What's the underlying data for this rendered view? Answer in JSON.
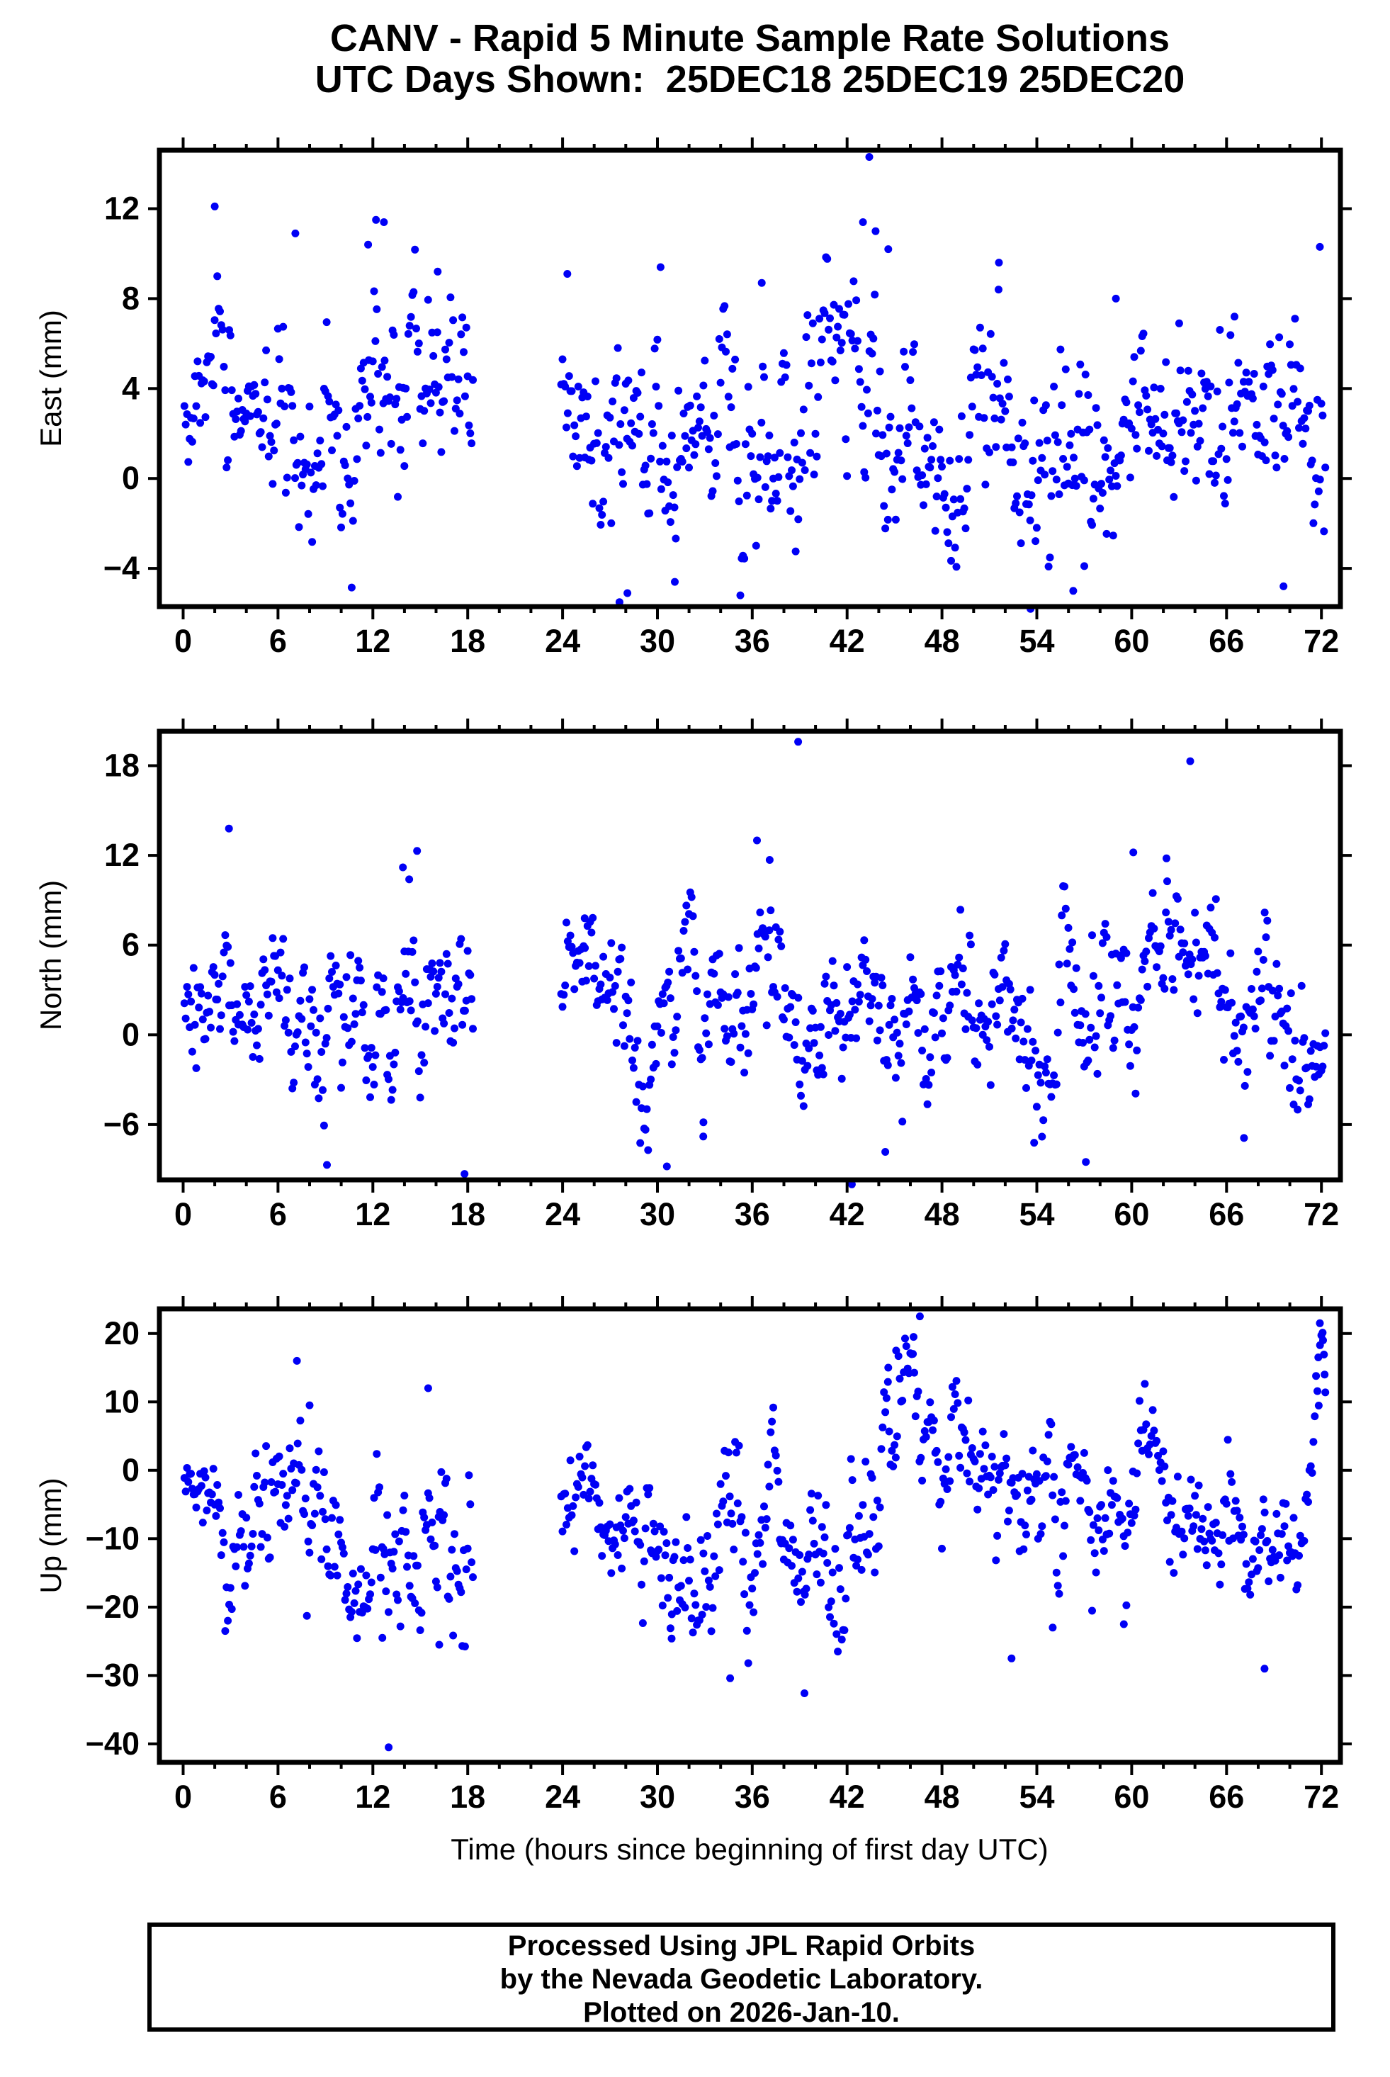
{
  "page": {
    "background": "#ffffff",
    "frame_color": "#000000"
  },
  "title": {
    "line1": "CANV - Rapid 5 Minute Sample Rate Solutions",
    "line2": "UTC Days Shown:  25DEC18 25DEC19 25DEC20"
  },
  "footer": {
    "line1": "Processed Using JPL Rapid Orbits",
    "line2": "by the Nevada Geodetic Laboratory.",
    "line3": "Plotted on 2026-Jan-10."
  },
  "chart_data": [
    {
      "type": "scatter",
      "panel": "east",
      "ylabel": "East (mm)",
      "xlabel": "",
      "marker": {
        "color": "#0000f5",
        "radius": 5.5
      },
      "xlim": [
        -1.5,
        73.2
      ],
      "ylim": [
        -5.7,
        14.6
      ],
      "xticks_major": [
        0,
        6,
        12,
        18,
        24,
        30,
        36,
        42,
        48,
        54,
        60,
        66,
        72
      ],
      "xtick_minor_step": 2,
      "yticks": [
        -4,
        0,
        4,
        8,
        12
      ],
      "sample_interval_hours": 0.08333,
      "t_start": 0.08,
      "t_end": 72.3,
      "gap_hours": [
        18.35,
        23.9
      ],
      "seed": 7,
      "trend": {
        "t": [
          0,
          1.5,
          3,
          6,
          9,
          12,
          14,
          16,
          18.3,
          23.4,
          25,
          26,
          28,
          31,
          33,
          36,
          39,
          42,
          44,
          46,
          49,
          52,
          55,
          58,
          61,
          63,
          66,
          69,
          71,
          72.3
        ],
        "mean": [
          1.2,
          3.2,
          4.0,
          3.6,
          3.8,
          4.6,
          4.2,
          3.6,
          3.2,
          4.5,
          4.2,
          2.5,
          1.2,
          1.0,
          1.2,
          2.6,
          2.2,
          3.8,
          3.5,
          2.0,
          2.8,
          2.6,
          1.8,
          2.4,
          3.2,
          3.8,
          2.6,
          1.6,
          1.2,
          4.0
        ],
        "std": [
          1.4,
          1.8,
          2.2,
          2.2,
          2.4,
          2.6,
          2.4,
          2.4,
          2.2,
          1.5,
          1.8,
          2.2,
          2.8,
          2.4,
          2.2,
          2.6,
          2.4,
          3.2,
          2.8,
          2.4,
          2.2,
          2.4,
          2.8,
          2.2,
          2.2,
          2.0,
          2.2,
          2.2,
          2.4,
          3.0
        ]
      },
      "outliers": [
        [
          2.0,
          12.1
        ],
        [
          12.2,
          11.5
        ],
        [
          12.7,
          11.4
        ],
        [
          11.7,
          10.4
        ],
        [
          7.1,
          10.9
        ],
        [
          43.4,
          14.3
        ],
        [
          43.0,
          11.4
        ],
        [
          43.8,
          11.0
        ],
        [
          44.6,
          10.2
        ],
        [
          16.1,
          9.2
        ],
        [
          24.3,
          9.1
        ],
        [
          30.2,
          9.4
        ],
        [
          36.6,
          8.7
        ],
        [
          51.6,
          9.6
        ],
        [
          59.0,
          8.0
        ],
        [
          71.9,
          10.3
        ],
        [
          27.6,
          -5.5
        ],
        [
          28.1,
          -5.1
        ],
        [
          31.1,
          -4.6
        ],
        [
          53.6,
          -5.8
        ],
        [
          56.3,
          -5.0
        ],
        [
          69.6,
          -4.8
        ],
        [
          57.0,
          -3.9
        ],
        [
          63.0,
          6.9
        ],
        [
          66.5,
          7.2
        ]
      ]
    },
    {
      "type": "scatter",
      "panel": "north",
      "ylabel": "North (mm)",
      "xlabel": "",
      "marker": {
        "color": "#0000f5",
        "radius": 5.5
      },
      "xlim": [
        -1.5,
        73.2
      ],
      "ylim": [
        -9.7,
        20.3
      ],
      "xticks_major": [
        0,
        6,
        12,
        18,
        24,
        30,
        36,
        42,
        48,
        54,
        60,
        66,
        72
      ],
      "xtick_minor_step": 2,
      "yticks": [
        -6,
        0,
        6,
        12,
        18
      ],
      "sample_interval_hours": 0.08333,
      "t_start": 0.08,
      "t_end": 72.3,
      "gap_hours": [
        18.35,
        23.9
      ],
      "seed": 13,
      "trend": {
        "t": [
          0,
          8,
          12,
          14.5,
          18.3,
          23.4,
          27,
          31,
          35,
          39,
          43,
          47,
          51,
          55,
          58,
          61,
          63.5,
          66,
          69,
          72.3
        ],
        "mean": [
          0.3,
          -0.8,
          0.5,
          3.0,
          0.5,
          3.5,
          1.0,
          0.5,
          2.5,
          1.0,
          1.5,
          2.5,
          1.5,
          2.5,
          3.5,
          5.0,
          5.5,
          2.5,
          0.5,
          1.0
        ],
        "std": [
          2.4,
          2.8,
          3.2,
          3.8,
          3.0,
          2.0,
          2.8,
          3.0,
          2.8,
          2.8,
          3.0,
          3.0,
          2.8,
          3.0,
          3.0,
          3.2,
          3.0,
          3.0,
          2.8,
          2.4
        ]
      },
      "outliers": [
        [
          2.9,
          13.8
        ],
        [
          14.8,
          12.3
        ],
        [
          13.9,
          11.2
        ],
        [
          14.3,
          10.4
        ],
        [
          38.9,
          19.6
        ],
        [
          63.7,
          18.3
        ],
        [
          36.3,
          13.0
        ],
        [
          37.1,
          11.7
        ],
        [
          9.1,
          -8.7
        ],
        [
          17.8,
          -9.3
        ],
        [
          30.6,
          -8.8
        ],
        [
          42.3,
          -10.0
        ],
        [
          57.1,
          -8.5
        ],
        [
          67.1,
          -6.9
        ],
        [
          60.1,
          12.2
        ],
        [
          62.2,
          11.8
        ],
        [
          25.4,
          7.8
        ],
        [
          32.9,
          -6.8
        ]
      ]
    },
    {
      "type": "scatter",
      "panel": "up",
      "ylabel": "Up (mm)",
      "xlabel": "Time (hours since beginning of first day UTC)",
      "marker": {
        "color": "#0000f5",
        "radius": 5.5
      },
      "xlim": [
        -1.5,
        73.2
      ],
      "ylim": [
        -42.7,
        23.6
      ],
      "xticks_major": [
        0,
        6,
        12,
        18,
        24,
        30,
        36,
        42,
        48,
        54,
        60,
        66,
        72
      ],
      "xtick_minor_step": 2,
      "yticks": [
        -40,
        -30,
        -20,
        -10,
        0,
        10,
        20
      ],
      "sample_interval_hours": 0.08333,
      "t_start": 0.08,
      "t_end": 72.3,
      "gap_hours": [
        18.35,
        23.9
      ],
      "seed": 29,
      "trend": {
        "t": [
          0,
          1.5,
          3,
          6,
          9,
          12,
          15,
          17,
          18.3,
          23.4,
          26,
          29,
          31,
          34,
          37,
          40,
          42,
          44,
          46,
          48,
          50,
          52,
          55,
          57,
          59,
          61,
          63,
          65,
          67,
          69,
          71,
          72.3
        ],
        "mean": [
          -2,
          -6,
          -9,
          -7,
          -8,
          -9,
          -7,
          -11,
          -13,
          -3,
          -6,
          -11,
          -13,
          -10,
          -9,
          -16,
          -17,
          -2,
          9,
          5,
          1,
          -3,
          -6,
          -9,
          -4,
          1,
          -2,
          -10,
          -11,
          -7,
          -4,
          14
        ],
        "std": [
          2,
          4,
          5.5,
          6,
          6.5,
          7,
          8,
          7,
          6,
          4.5,
          5,
          5.5,
          6,
          7.5,
          6.5,
          7,
          7.5,
          7,
          6,
          5.5,
          5,
          5.5,
          6,
          5.5,
          5,
          5,
          5.5,
          6,
          5.5,
          5,
          5,
          5
        ]
      },
      "outliers": [
        [
          13.0,
          -40.5
        ],
        [
          7.2,
          16.0
        ],
        [
          8.0,
          9.5
        ],
        [
          15.5,
          12.0
        ],
        [
          12.6,
          -24.5
        ],
        [
          16.2,
          -25.5
        ],
        [
          46.6,
          22.5
        ],
        [
          46.2,
          19.5
        ],
        [
          45.1,
          17.5
        ],
        [
          44.6,
          15.0
        ],
        [
          71.9,
          21.5
        ],
        [
          72.1,
          19.0
        ],
        [
          71.8,
          16.5
        ],
        [
          72.2,
          14.0
        ],
        [
          39.3,
          -32.6
        ],
        [
          34.6,
          -30.4
        ],
        [
          30.9,
          -24.6
        ],
        [
          52.4,
          -27.5
        ],
        [
          68.4,
          -29.0
        ],
        [
          55.0,
          -23.0
        ],
        [
          59.5,
          -22.5
        ]
      ]
    }
  ]
}
